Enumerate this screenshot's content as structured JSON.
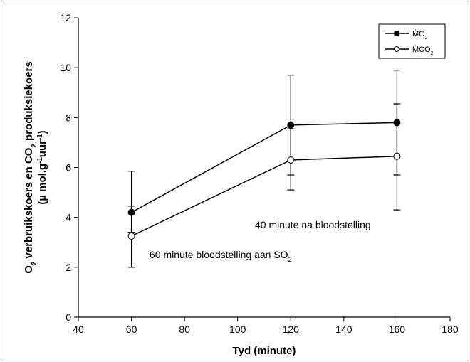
{
  "chart_data": {
    "type": "line",
    "x": [
      60,
      120,
      160
    ],
    "xlabel": "Tyd (minute)",
    "ylabel_line1_parts": [
      "O",
      "2",
      " verbruikskoers en CO",
      "2",
      " produksiekoers"
    ],
    "ylabel_line2_parts": [
      "(µ mol.g",
      "-1",
      "uur",
      "-1",
      ")"
    ],
    "xlim": [
      40,
      180
    ],
    "ylim": [
      0,
      12
    ],
    "xticks": [
      40,
      60,
      80,
      100,
      120,
      140,
      160,
      180
    ],
    "yticks": [
      0,
      2,
      4,
      6,
      8,
      10,
      12
    ],
    "grid": false,
    "legend_position": "top-right",
    "series": [
      {
        "name_parts": [
          "ṀO",
          "2"
        ],
        "marker": "filled-circle",
        "values": [
          4.2,
          7.7,
          7.8
        ],
        "err_low": [
          3.4,
          5.7,
          5.7
        ],
        "err_high": [
          5.85,
          9.7,
          9.9
        ],
        "color": "#000000"
      },
      {
        "name_parts": [
          "ṀCO",
          "2"
        ],
        "marker": "open-circle",
        "values": [
          3.25,
          6.3,
          6.45
        ],
        "err_low": [
          2.0,
          5.1,
          4.3
        ],
        "err_high": [
          4.45,
          7.55,
          8.55
        ],
        "color": "#000000"
      }
    ],
    "annotations": [
      {
        "id": "a1",
        "parts": [
          "40 minute na bloodstelling"
        ]
      },
      {
        "id": "a2",
        "parts": [
          "60 minute bloodstelling aan SO",
          "2"
        ]
      }
    ]
  }
}
